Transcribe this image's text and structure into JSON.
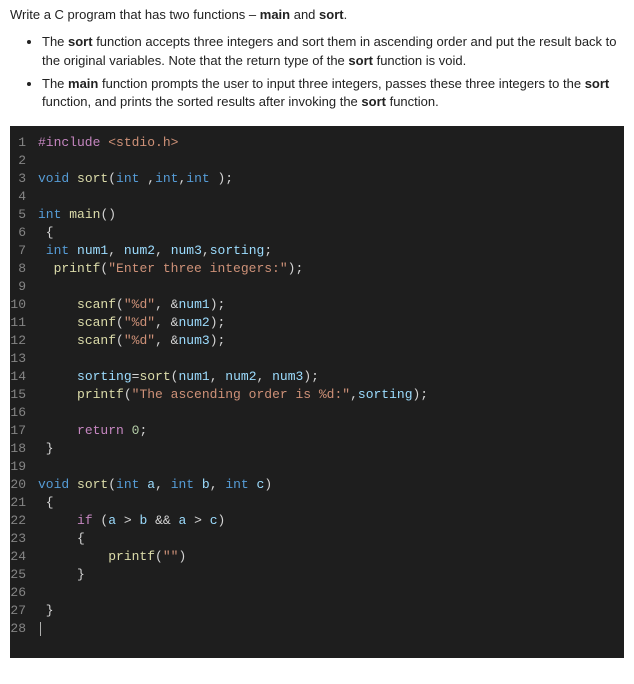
{
  "prompt": {
    "heading_pre": "Write a C program that has two functions – ",
    "heading_m1": "main",
    "heading_mid": " and ",
    "heading_m2": "sort",
    "heading_post": ".",
    "bullet1_pre": "The ",
    "bullet1_b1": "sort",
    "bullet1_mid1": " function accepts three integers and sort them in ascending order and put the result back to the original variables. Note that the return type of the ",
    "bullet1_b2": "sort",
    "bullet1_post": " function is void.",
    "bullet2_pre": "The ",
    "bullet2_b1": "main",
    "bullet2_mid1": " function prompts the user to input three integers, passes these three integers to the ",
    "bullet2_b2": "sort",
    "bullet2_mid2": " function, and prints the sorted results after invoking the ",
    "bullet2_b3": "sort",
    "bullet2_post": " function."
  },
  "colors": {
    "editor_bg": "#1e1e1e",
    "editor_fg": "#d4d4d4",
    "gutter": "#858585",
    "keyword": "#569cd6",
    "preproc": "#c586c0",
    "string": "#ce9178",
    "function": "#dcdcaa",
    "identifier": "#9cdcfe",
    "number": "#b5cea8"
  },
  "code_lines": [
    {
      "n": "1",
      "t": [
        [
          "pp",
          "#include "
        ],
        [
          "inc",
          "<stdio.h>"
        ]
      ]
    },
    {
      "n": "2",
      "t": []
    },
    {
      "n": "3",
      "t": [
        [
          "kw",
          "void "
        ],
        [
          "fn",
          "sort"
        ],
        [
          "pl",
          "("
        ],
        [
          "kw",
          "int"
        ],
        [
          "pl",
          " ,"
        ],
        [
          "kw",
          "int"
        ],
        [
          "pl",
          ","
        ],
        [
          "kw",
          "int"
        ],
        [
          "pl",
          " );"
        ]
      ]
    },
    {
      "n": "4",
      "t": []
    },
    {
      "n": "5",
      "t": [
        [
          "kw",
          "int "
        ],
        [
          "fn",
          "main"
        ],
        [
          "pl",
          "()"
        ]
      ]
    },
    {
      "n": "6",
      "t": [
        [
          "pl",
          " {"
        ]
      ]
    },
    {
      "n": "7",
      "t": [
        [
          "pl",
          " "
        ],
        [
          "kw",
          "int"
        ],
        [
          "pl",
          " "
        ],
        [
          "id",
          "num1"
        ],
        [
          "pl",
          ", "
        ],
        [
          "id",
          "num2"
        ],
        [
          "pl",
          ", "
        ],
        [
          "id",
          "num3"
        ],
        [
          "pl",
          ","
        ],
        [
          "id",
          "sorting"
        ],
        [
          "pl",
          ";"
        ]
      ]
    },
    {
      "n": "8",
      "t": [
        [
          "pl",
          "  "
        ],
        [
          "fn",
          "printf"
        ],
        [
          "pl",
          "("
        ],
        [
          "str",
          "\"Enter three integers:\""
        ],
        [
          "pl",
          ");"
        ]
      ]
    },
    {
      "n": "9",
      "t": []
    },
    {
      "n": "10",
      "t": [
        [
          "pl",
          "     "
        ],
        [
          "fn",
          "scanf"
        ],
        [
          "pl",
          "("
        ],
        [
          "str",
          "\"%d\""
        ],
        [
          "pl",
          ", &"
        ],
        [
          "id",
          "num1"
        ],
        [
          "pl",
          ");"
        ]
      ]
    },
    {
      "n": "11",
      "t": [
        [
          "pl",
          "     "
        ],
        [
          "fn",
          "scanf"
        ],
        [
          "pl",
          "("
        ],
        [
          "str",
          "\"%d\""
        ],
        [
          "pl",
          ", &"
        ],
        [
          "id",
          "num2"
        ],
        [
          "pl",
          ");"
        ]
      ]
    },
    {
      "n": "12",
      "t": [
        [
          "pl",
          "     "
        ],
        [
          "fn",
          "scanf"
        ],
        [
          "pl",
          "("
        ],
        [
          "str",
          "\"%d\""
        ],
        [
          "pl",
          ", &"
        ],
        [
          "id",
          "num3"
        ],
        [
          "pl",
          ");"
        ]
      ]
    },
    {
      "n": "13",
      "t": []
    },
    {
      "n": "14",
      "t": [
        [
          "pl",
          "     "
        ],
        [
          "id",
          "sorting"
        ],
        [
          "pl",
          "="
        ],
        [
          "fn",
          "sort"
        ],
        [
          "pl",
          "("
        ],
        [
          "id",
          "num1"
        ],
        [
          "pl",
          ", "
        ],
        [
          "id",
          "num2"
        ],
        [
          "pl",
          ", "
        ],
        [
          "id",
          "num3"
        ],
        [
          "pl",
          ");"
        ]
      ]
    },
    {
      "n": "15",
      "t": [
        [
          "pl",
          "     "
        ],
        [
          "fn",
          "printf"
        ],
        [
          "pl",
          "("
        ],
        [
          "str",
          "\"The ascending order is %d:\""
        ],
        [
          "pl",
          ","
        ],
        [
          "id",
          "sorting"
        ],
        [
          "pl",
          ");"
        ]
      ]
    },
    {
      "n": "16",
      "t": []
    },
    {
      "n": "17",
      "t": [
        [
          "pl",
          "     "
        ],
        [
          "pp",
          "return "
        ],
        [
          "num",
          "0"
        ],
        [
          "pl",
          ";"
        ]
      ]
    },
    {
      "n": "18",
      "t": [
        [
          "pl",
          " }"
        ]
      ]
    },
    {
      "n": "19",
      "t": []
    },
    {
      "n": "20",
      "t": [
        [
          "kw",
          "void "
        ],
        [
          "fn",
          "sort"
        ],
        [
          "pl",
          "("
        ],
        [
          "kw",
          "int"
        ],
        [
          "pl",
          " "
        ],
        [
          "id",
          "a"
        ],
        [
          "pl",
          ", "
        ],
        [
          "kw",
          "int"
        ],
        [
          "pl",
          " "
        ],
        [
          "id",
          "b"
        ],
        [
          "pl",
          ", "
        ],
        [
          "kw",
          "int"
        ],
        [
          "pl",
          " "
        ],
        [
          "id",
          "c"
        ],
        [
          "pl",
          ")"
        ]
      ]
    },
    {
      "n": "21",
      "t": [
        [
          "pl",
          " {"
        ]
      ]
    },
    {
      "n": "22",
      "t": [
        [
          "pl",
          "     "
        ],
        [
          "pp",
          "if"
        ],
        [
          "pl",
          " ("
        ],
        [
          "id",
          "a"
        ],
        [
          "pl",
          " > "
        ],
        [
          "id",
          "b"
        ],
        [
          "pl",
          " && "
        ],
        [
          "id",
          "a"
        ],
        [
          "pl",
          " > "
        ],
        [
          "id",
          "c"
        ],
        [
          "pl",
          ")"
        ]
      ]
    },
    {
      "n": "23",
      "t": [
        [
          "pl",
          "     {"
        ]
      ]
    },
    {
      "n": "24",
      "t": [
        [
          "pl",
          "         "
        ],
        [
          "fn",
          "printf"
        ],
        [
          "pl",
          "("
        ],
        [
          "str",
          "\"\""
        ],
        [
          "pl",
          ")"
        ]
      ]
    },
    {
      "n": "25",
      "t": [
        [
          "pl",
          "     }"
        ]
      ]
    },
    {
      "n": "26",
      "t": []
    },
    {
      "n": "27",
      "t": [
        [
          "pl",
          " }"
        ]
      ]
    },
    {
      "n": "28",
      "t": [],
      "cursor": true
    }
  ]
}
